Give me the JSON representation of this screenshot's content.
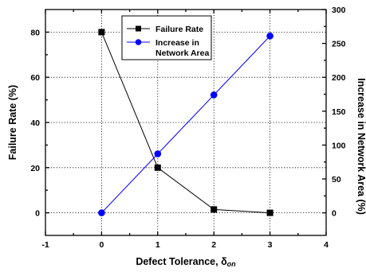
{
  "chart_data": {
    "type": "line",
    "x": [
      0,
      1,
      2,
      3
    ],
    "xlim": [
      -1,
      4
    ],
    "xticks": [
      -1,
      0,
      1,
      2,
      3,
      4
    ],
    "xlabel": "Defect Tolerance, δ",
    "xlabel_subscript": "on",
    "y_left": {
      "label": "Failure Rate (%)",
      "lim": [
        -10,
        90
      ],
      "ticks": [
        0,
        20,
        40,
        60,
        80
      ]
    },
    "y_right": {
      "label": "Increase in Network Area (%)",
      "lim": [
        -33.33,
        300
      ],
      "ticks": [
        0,
        50,
        100,
        150,
        200,
        250,
        300
      ]
    },
    "grid": true,
    "legend_position": "top-center",
    "series": [
      {
        "name": "Failure Rate",
        "axis": "left",
        "values": [
          80,
          20,
          1.5,
          0
        ],
        "color": "#000000",
        "marker": "square"
      },
      {
        "name": "Increase in Network Area",
        "legend_lines": [
          "Increase in",
          "Network Area"
        ],
        "axis": "right",
        "values": [
          0,
          87,
          174,
          261
        ],
        "color": "#0000ff",
        "marker": "circle"
      }
    ]
  }
}
